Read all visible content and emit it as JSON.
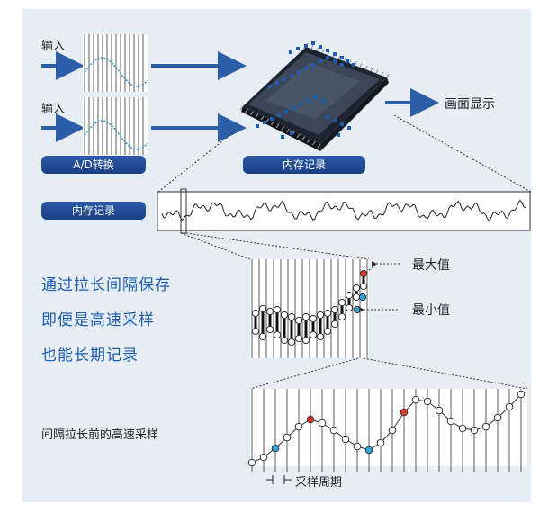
{
  "input_label": "输入",
  "input_label_2": "输入",
  "ad_label": "A/D转换",
  "memory_label": "内存记录",
  "memory_label_2": "内存记录",
  "display_label": "画面显示",
  "max_label": "最大值",
  "min_label": "最小值",
  "headline_lines": [
    "通过拉长间隔保存",
    "即便是高速采样",
    "也能长期记录"
  ],
  "bottom_label": "间隔拉长前的高速采样",
  "period_label": "采样周期",
  "colors": {
    "panel": "#e6edf5",
    "accent": "#1f5bb0",
    "arrow": "#2a5fa8",
    "max_marker": "#e53a2b",
    "min_marker": "#2aa7d9",
    "pill": "#1f4a94"
  }
}
